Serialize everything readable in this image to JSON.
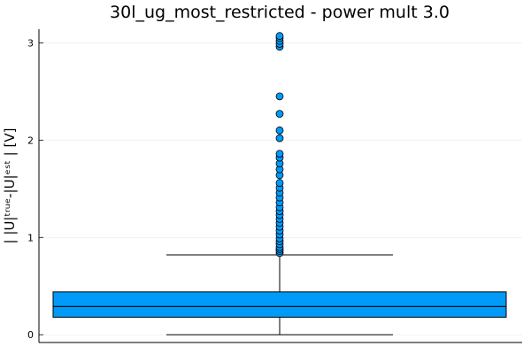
{
  "chart_data": {
    "type": "box",
    "title": "30l_ug_most_restricted - power mult 3.0",
    "xlabel": "",
    "ylabel": "| |U|ᵗʳᵘᵉ-|U|ᵉˢᵗ | [V]",
    "ylim": [
      -0.08,
      3.14
    ],
    "yticks": [
      0,
      1,
      2,
      3
    ],
    "ytick_labels": [
      "0",
      "1",
      "2",
      "3"
    ],
    "grid": true,
    "legend": "none",
    "box": {
      "whisker_low": 0.0,
      "q1": 0.18,
      "median": 0.29,
      "q3": 0.44,
      "whisker_high": 0.82
    },
    "outliers": [
      0.84,
      0.86,
      0.88,
      0.9,
      0.93,
      0.96,
      0.99,
      1.03,
      1.07,
      1.11,
      1.15,
      1.19,
      1.23,
      1.27,
      1.31,
      1.36,
      1.41,
      1.46,
      1.51,
      1.56,
      1.64,
      1.7,
      1.76,
      1.82,
      1.86,
      2.02,
      2.1,
      2.27,
      2.45,
      2.96,
      2.99,
      3.02,
      3.05,
      3.07
    ],
    "colors": {
      "box_fill": "#009AF9",
      "outlier_fill": "#009AF9",
      "stroke": "#000000"
    }
  }
}
